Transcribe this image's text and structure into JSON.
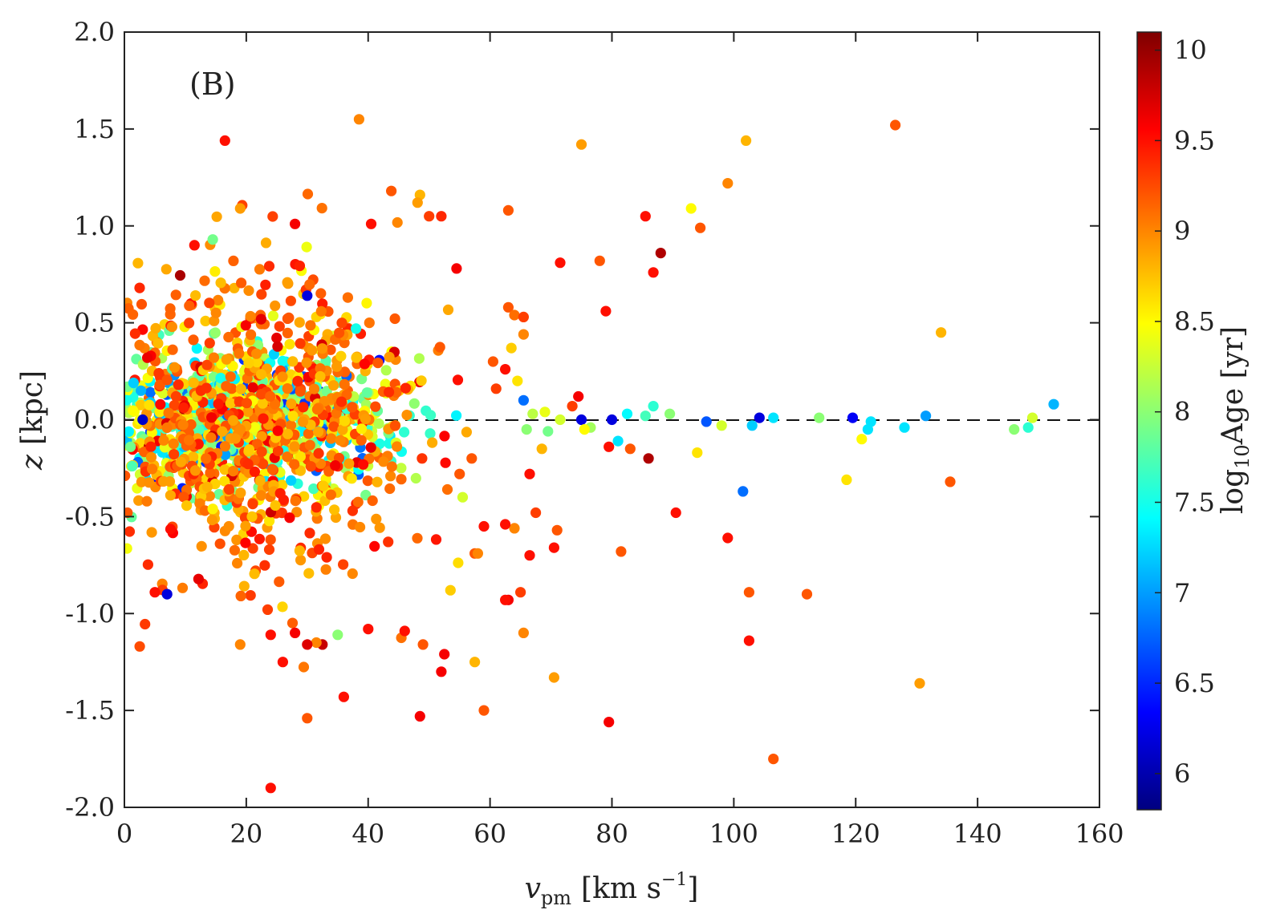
{
  "chart_data": {
    "type": "scatter",
    "panel_label": "(B)",
    "xlabel": {
      "symbol": "v",
      "subscript": "pm",
      "unit": "[km s",
      "unit_sup": "−1",
      "unit_close": "]"
    },
    "ylabel": {
      "symbol": "z",
      "unit": "[kpc]"
    },
    "colorbar_label": {
      "prefix": "log",
      "subscript": "10",
      "suffix": "Age [yr]"
    },
    "xlim": [
      0,
      160
    ],
    "ylim": [
      -2.0,
      2.0
    ],
    "clim": [
      5.8,
      10.1
    ],
    "x_ticks": [
      "0",
      "20",
      "40",
      "60",
      "80",
      "100",
      "120",
      "140",
      "160"
    ],
    "y_ticks": [
      "-2.0",
      "-1.5",
      "-1.0",
      "-0.5",
      "0.0",
      "0.5",
      "1.0",
      "1.5",
      "2.0"
    ],
    "colorbar_ticks": [
      "6",
      "6.5",
      "7",
      "7.5",
      "8",
      "8.5",
      "9",
      "9.5",
      "10"
    ],
    "reference_line": {
      "y": 0.0,
      "style": "dashed"
    },
    "colormap": "jet",
    "outliers": [
      {
        "x": 38.5,
        "y": 1.55,
        "c": 9.0
      },
      {
        "x": 126.5,
        "y": 1.52,
        "c": 9.2
      },
      {
        "x": 16.5,
        "y": 1.44,
        "c": 9.5
      },
      {
        "x": 75.0,
        "y": 1.42,
        "c": 8.9
      },
      {
        "x": 102.0,
        "y": 1.44,
        "c": 8.8
      },
      {
        "x": 99.0,
        "y": 1.22,
        "c": 9.0
      },
      {
        "x": 43.8,
        "y": 1.18,
        "c": 9.2
      },
      {
        "x": 48.5,
        "y": 1.16,
        "c": 8.8
      },
      {
        "x": 48.1,
        "y": 1.12,
        "c": 8.9
      },
      {
        "x": 19.0,
        "y": 1.09,
        "c": 8.9
      },
      {
        "x": 93.0,
        "y": 1.09,
        "c": 8.5
      },
      {
        "x": 63.0,
        "y": 1.08,
        "c": 9.2
      },
      {
        "x": 85.5,
        "y": 1.05,
        "c": 9.5
      },
      {
        "x": 50.0,
        "y": 1.05,
        "c": 9.3
      },
      {
        "x": 52.0,
        "y": 1.05,
        "c": 9.4
      },
      {
        "x": 28.0,
        "y": 1.01,
        "c": 9.6
      },
      {
        "x": 40.5,
        "y": 1.01,
        "c": 9.5
      },
      {
        "x": 94.5,
        "y": 0.99,
        "c": 9.2
      },
      {
        "x": 14.5,
        "y": 0.93,
        "c": 7.9
      },
      {
        "x": 11.5,
        "y": 0.9,
        "c": 9.5
      },
      {
        "x": 88.0,
        "y": 0.86,
        "c": 9.9
      },
      {
        "x": 71.5,
        "y": 0.81,
        "c": 9.5
      },
      {
        "x": 78.0,
        "y": 0.82,
        "c": 9.2
      },
      {
        "x": 86.8,
        "y": 0.76,
        "c": 9.5
      },
      {
        "x": 54.5,
        "y": 0.78,
        "c": 9.6
      },
      {
        "x": 2.5,
        "y": 0.68,
        "c": 9.4
      },
      {
        "x": 79.0,
        "y": 0.56,
        "c": 9.5
      },
      {
        "x": 134.0,
        "y": 0.45,
        "c": 8.8
      },
      {
        "x": 65.5,
        "y": 0.1,
        "c": 6.8
      },
      {
        "x": 74.5,
        "y": 0.12,
        "c": 9.6
      },
      {
        "x": 75.0,
        "y": 0.0,
        "c": 6.2
      },
      {
        "x": 80.0,
        "y": 0.0,
        "c": 6.2
      },
      {
        "x": 82.5,
        "y": 0.03,
        "c": 7.4
      },
      {
        "x": 85.5,
        "y": 0.02,
        "c": 7.7
      },
      {
        "x": 86.8,
        "y": 0.07,
        "c": 7.6
      },
      {
        "x": 89.5,
        "y": 0.03,
        "c": 8.0
      },
      {
        "x": 95.5,
        "y": -0.01,
        "c": 6.7
      },
      {
        "x": 98.0,
        "y": -0.03,
        "c": 8.3
      },
      {
        "x": 103.0,
        "y": -0.03,
        "c": 7.2
      },
      {
        "x": 104.2,
        "y": 0.01,
        "c": 6.2
      },
      {
        "x": 106.5,
        "y": 0.01,
        "c": 7.3
      },
      {
        "x": 114.0,
        "y": 0.01,
        "c": 8.0
      },
      {
        "x": 119.5,
        "y": 0.01,
        "c": 6.3
      },
      {
        "x": 121.0,
        "y": -0.1,
        "c": 8.5
      },
      {
        "x": 122.0,
        "y": -0.05,
        "c": 7.3
      },
      {
        "x": 122.5,
        "y": -0.01,
        "c": 7.3
      },
      {
        "x": 128.0,
        "y": -0.04,
        "c": 7.3
      },
      {
        "x": 131.5,
        "y": 0.02,
        "c": 7.0
      },
      {
        "x": 146.0,
        "y": -0.05,
        "c": 8.0
      },
      {
        "x": 148.3,
        "y": -0.04,
        "c": 7.6
      },
      {
        "x": 149.0,
        "y": 0.01,
        "c": 8.3
      },
      {
        "x": 152.5,
        "y": 0.08,
        "c": 7.1
      },
      {
        "x": 81.0,
        "y": -0.11,
        "c": 7.3
      },
      {
        "x": 79.5,
        "y": -0.14,
        "c": 9.5
      },
      {
        "x": 83.0,
        "y": -0.15,
        "c": 9.2
      },
      {
        "x": 86.0,
        "y": -0.2,
        "c": 9.9
      },
      {
        "x": 94.0,
        "y": -0.17,
        "c": 8.6
      },
      {
        "x": 101.5,
        "y": -0.37,
        "c": 6.8
      },
      {
        "x": 118.5,
        "y": -0.31,
        "c": 8.6
      },
      {
        "x": 135.5,
        "y": -0.32,
        "c": 9.2
      },
      {
        "x": 90.5,
        "y": -0.48,
        "c": 9.5
      },
      {
        "x": 81.5,
        "y": -0.68,
        "c": 9.2
      },
      {
        "x": 99.0,
        "y": -0.61,
        "c": 9.5
      },
      {
        "x": 102.5,
        "y": -0.89,
        "c": 9.2
      },
      {
        "x": 112.0,
        "y": -0.9,
        "c": 9.2
      },
      {
        "x": 102.5,
        "y": -1.14,
        "c": 9.5
      },
      {
        "x": 130.5,
        "y": -1.36,
        "c": 8.9
      },
      {
        "x": 79.5,
        "y": -1.56,
        "c": 9.6
      },
      {
        "x": 106.5,
        "y": -1.75,
        "c": 9.2
      },
      {
        "x": 70.5,
        "y": -1.33,
        "c": 8.9
      },
      {
        "x": 65.5,
        "y": -1.1,
        "c": 9.0
      },
      {
        "x": 59.0,
        "y": -1.5,
        "c": 9.2
      },
      {
        "x": 57.5,
        "y": -1.25,
        "c": 8.8
      },
      {
        "x": 52.0,
        "y": -1.3,
        "c": 9.6
      },
      {
        "x": 52.5,
        "y": -1.21,
        "c": 9.6
      },
      {
        "x": 48.5,
        "y": -1.53,
        "c": 9.6
      },
      {
        "x": 49.0,
        "y": -1.16,
        "c": 9.2
      },
      {
        "x": 46.0,
        "y": -1.09,
        "c": 9.5
      },
      {
        "x": 40.0,
        "y": -1.08,
        "c": 9.5
      },
      {
        "x": 36.0,
        "y": -1.43,
        "c": 9.5
      },
      {
        "x": 35.0,
        "y": -1.11,
        "c": 8.0
      },
      {
        "x": 32.5,
        "y": -1.16,
        "c": 9.8
      },
      {
        "x": 31.5,
        "y": -1.15,
        "c": 9.0
      },
      {
        "x": 30.0,
        "y": -1.16,
        "c": 9.7
      },
      {
        "x": 30.0,
        "y": -1.54,
        "c": 9.2
      },
      {
        "x": 28.0,
        "y": -1.1,
        "c": 9.6
      },
      {
        "x": 26.0,
        "y": -1.25,
        "c": 9.5
      },
      {
        "x": 24.0,
        "y": -1.11,
        "c": 9.5
      },
      {
        "x": 24.0,
        "y": -1.9,
        "c": 9.5
      },
      {
        "x": 19.0,
        "y": -1.16,
        "c": 9.0
      },
      {
        "x": 23.5,
        "y": -0.98,
        "c": 9.3
      },
      {
        "x": 7.0,
        "y": -0.9,
        "c": 6.2
      },
      {
        "x": 5.0,
        "y": -0.89,
        "c": 9.5
      },
      {
        "x": 63.0,
        "y": -0.93,
        "c": 9.6
      },
      {
        "x": 62.5,
        "y": -0.93,
        "c": 9.5
      },
      {
        "x": 65.0,
        "y": -0.89,
        "c": 9.3
      },
      {
        "x": 66.5,
        "y": -0.7,
        "c": 9.5
      },
      {
        "x": 70.5,
        "y": -0.66,
        "c": 9.5
      },
      {
        "x": 71.0,
        "y": -0.57,
        "c": 9.2
      },
      {
        "x": 67.5,
        "y": -0.48,
        "c": 9.3
      },
      {
        "x": 66.5,
        "y": -0.28,
        "c": 9.5
      },
      {
        "x": 68.5,
        "y": -0.15,
        "c": 8.8
      },
      {
        "x": 53.5,
        "y": -0.88,
        "c": 8.7
      },
      {
        "x": 57.5,
        "y": -0.69,
        "c": 9.2
      },
      {
        "x": 58.0,
        "y": -0.69,
        "c": 9.0
      },
      {
        "x": 60.5,
        "y": 0.3,
        "c": 9.2
      },
      {
        "x": 62.5,
        "y": 0.26,
        "c": 9.5
      },
      {
        "x": 63.5,
        "y": 0.37,
        "c": 8.7
      },
      {
        "x": 63.0,
        "y": 0.58,
        "c": 9.2
      },
      {
        "x": 64.0,
        "y": 0.54,
        "c": 9.1
      },
      {
        "x": 65.5,
        "y": 0.53,
        "c": 9.3
      },
      {
        "x": 65.5,
        "y": 0.44,
        "c": 9.0
      },
      {
        "x": 64.5,
        "y": 0.2,
        "c": 8.6
      },
      {
        "x": 61.0,
        "y": 0.16,
        "c": 9.3
      },
      {
        "x": 69.0,
        "y": 0.04,
        "c": 8.4
      },
      {
        "x": 71.5,
        "y": 0.0,
        "c": 8.3
      },
      {
        "x": 67.0,
        "y": 0.03,
        "c": 8.2
      },
      {
        "x": 66.0,
        "y": -0.05,
        "c": 8.0
      },
      {
        "x": 69.5,
        "y": -0.06,
        "c": 7.9
      },
      {
        "x": 73.5,
        "y": 0.07,
        "c": 9.3
      },
      {
        "x": 76.5,
        "y": -0.04,
        "c": 8.1
      },
      {
        "x": 75.5,
        "y": -0.05,
        "c": 8.5
      },
      {
        "x": 59.0,
        "y": -0.55,
        "c": 9.5
      },
      {
        "x": 64.0,
        "y": -0.56,
        "c": 9.0
      },
      {
        "x": 62.5,
        "y": -0.54,
        "c": 9.5
      },
      {
        "x": 55.5,
        "y": -0.4,
        "c": 8.3
      },
      {
        "x": 53.0,
        "y": -0.36,
        "c": 9.1
      },
      {
        "x": 55.0,
        "y": -0.28,
        "c": 9.2
      },
      {
        "x": 57.0,
        "y": -0.2,
        "c": 9.2
      },
      {
        "x": 0.5,
        "y": -0.48,
        "c": 9.2
      },
      {
        "x": 30.0,
        "y": 0.64,
        "c": 6.2
      },
      {
        "x": 38.0,
        "y": 0.47,
        "c": 7.5
      },
      {
        "x": 0.5,
        "y": 0.17,
        "c": 7.9
      },
      {
        "x": 1.5,
        "y": 0.19,
        "c": 7.2
      },
      {
        "x": 3.0,
        "y": 0.0,
        "c": 6.1
      },
      {
        "x": 1.0,
        "y": -0.14,
        "c": 7.9
      }
    ]
  }
}
